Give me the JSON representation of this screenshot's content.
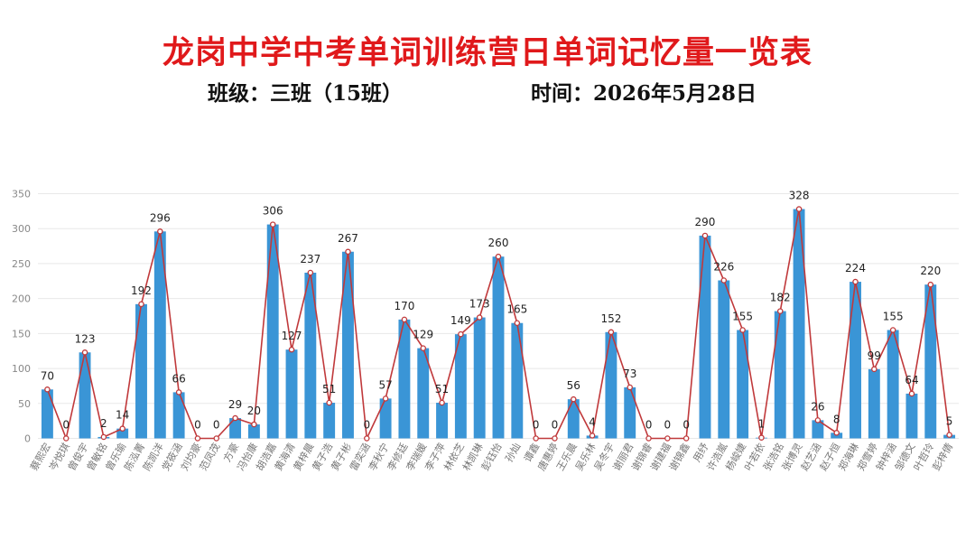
{
  "header": {
    "title": "龙岗中学中考单词训练营日单词记忆量一览表",
    "class_info": "班级：三班（15班）",
    "date_info": "时间：2026年5月28日"
  },
  "chart_data": {
    "type": "bar",
    "title": "",
    "xlabel": "",
    "ylabel": "",
    "ylim": [
      0,
      350
    ],
    "yticks": [
      0,
      50,
      100,
      150,
      200,
      250,
      300,
      350
    ],
    "grid": true,
    "colors": {
      "bar": "#3a95d6",
      "line": "#c0393b",
      "grid": "#e8e8e8"
    },
    "categories": [
      "蔡熙宏",
      "岑悦琪",
      "曾俊宇",
      "曾敏铭",
      "曾乐瑜",
      "陈泓菁",
      "陈凯洋",
      "党筱涵",
      "刘均豪",
      "范凤茂",
      "方豪",
      "冯怡康",
      "胡浩嘉",
      "黄海清",
      "黄梓晨",
      "黄子浩",
      "黄子彬",
      "雷奕涵",
      "李秋宁",
      "李修廷",
      "李瑞媛",
      "李子萍",
      "林依芝",
      "林凯琳",
      "彭钰怡",
      "孙灿",
      "谭鑫",
      "唐惠婷",
      "王乐晨",
      "吴乐林",
      "吴冬宇",
      "谢丽君",
      "谢锦睿",
      "谢建福",
      "谢锦鑫",
      "用纾",
      "许浩嵐",
      "杨峻婕",
      "叶若依",
      "张浩铭",
      "张博灵",
      "赵艺涵",
      "赵子恒",
      "郑海琳",
      "郑雪婷",
      "钟梓涵",
      "邹德文",
      "叶哲玲",
      "彭梓倩"
    ],
    "values": [
      70,
      0,
      123,
      2,
      14,
      192,
      296,
      66,
      0,
      0,
      29,
      20,
      306,
      127,
      237,
      51,
      267,
      0,
      57,
      170,
      129,
      51,
      149,
      173,
      260,
      165,
      0,
      0,
      56,
      4,
      152,
      73,
      0,
      0,
      0,
      290,
      226,
      155,
      1,
      182,
      328,
      26,
      8,
      224,
      99,
      155,
      64,
      220,
      5
    ]
  }
}
